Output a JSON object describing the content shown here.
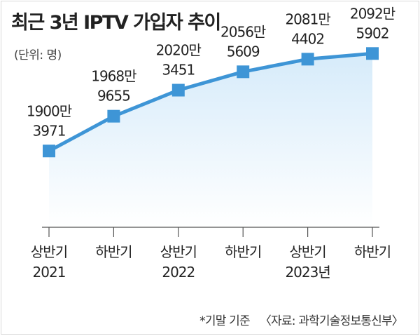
{
  "title": "최근 3년 IPTV 가입자 추이",
  "unit_note": "(단위: 명)",
  "footnote": "*기말 기준",
  "source": "〈자료: 과학기술정보통신부〉",
  "colors": {
    "line": "#3e95d6",
    "marker": "#3e95d6",
    "area_top": "#d6ebfa",
    "area_bottom": "#ffffff",
    "axis": "#555555",
    "text": "#222222"
  },
  "chart_data": {
    "type": "line",
    "title": "최근 3년 IPTV 가입자 추이",
    "ylabel": "(단위: 명)",
    "categories": [
      [
        "상반기",
        "2021"
      ],
      [
        "하반기",
        ""
      ],
      [
        "상반기",
        "2022"
      ],
      [
        "하반기",
        ""
      ],
      [
        "상반기",
        "2023년"
      ],
      [
        "하반기",
        ""
      ]
    ],
    "values": [
      19003971,
      19689655,
      20203451,
      20565609,
      20814402,
      20925902
    ],
    "data_labels": [
      [
        "1900만",
        "3971"
      ],
      [
        "1968만",
        "9655"
      ],
      [
        "2020만",
        "3451"
      ],
      [
        "2056만",
        "5609"
      ],
      [
        "2081만",
        "4402"
      ],
      [
        "2092만",
        "5902"
      ]
    ],
    "ylim": [
      17500000,
      21400000
    ],
    "grid": false,
    "area_fill": true
  }
}
